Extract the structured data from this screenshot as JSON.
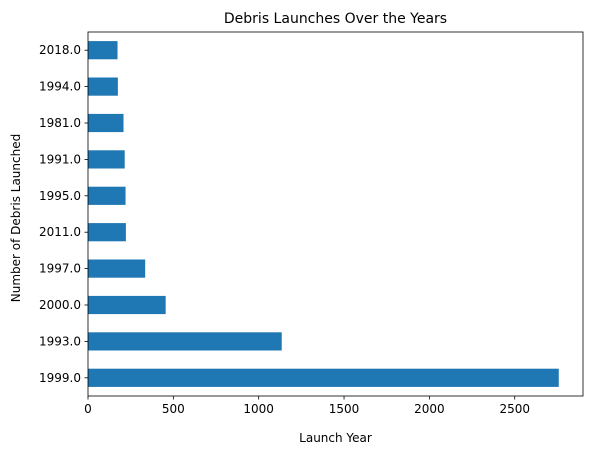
{
  "chart_data": {
    "type": "bar",
    "orientation": "horizontal",
    "title": "Debris Launches Over the Years",
    "xlabel": "Launch Year",
    "ylabel": "Number of Debris Launched",
    "categories": [
      "1999.0",
      "1993.0",
      "2000.0",
      "1997.0",
      "2011.0",
      "1995.0",
      "1991.0",
      "1981.0",
      "1994.0",
      "2018.0"
    ],
    "values": [
      2758,
      1135,
      455,
      335,
      222,
      220,
      215,
      208,
      175,
      173
    ],
    "xlim": [
      0,
      2900
    ],
    "xticks": [
      0,
      500,
      1000,
      1500,
      2000,
      2500
    ],
    "grid": false,
    "bar_color": "#1f77b4"
  }
}
